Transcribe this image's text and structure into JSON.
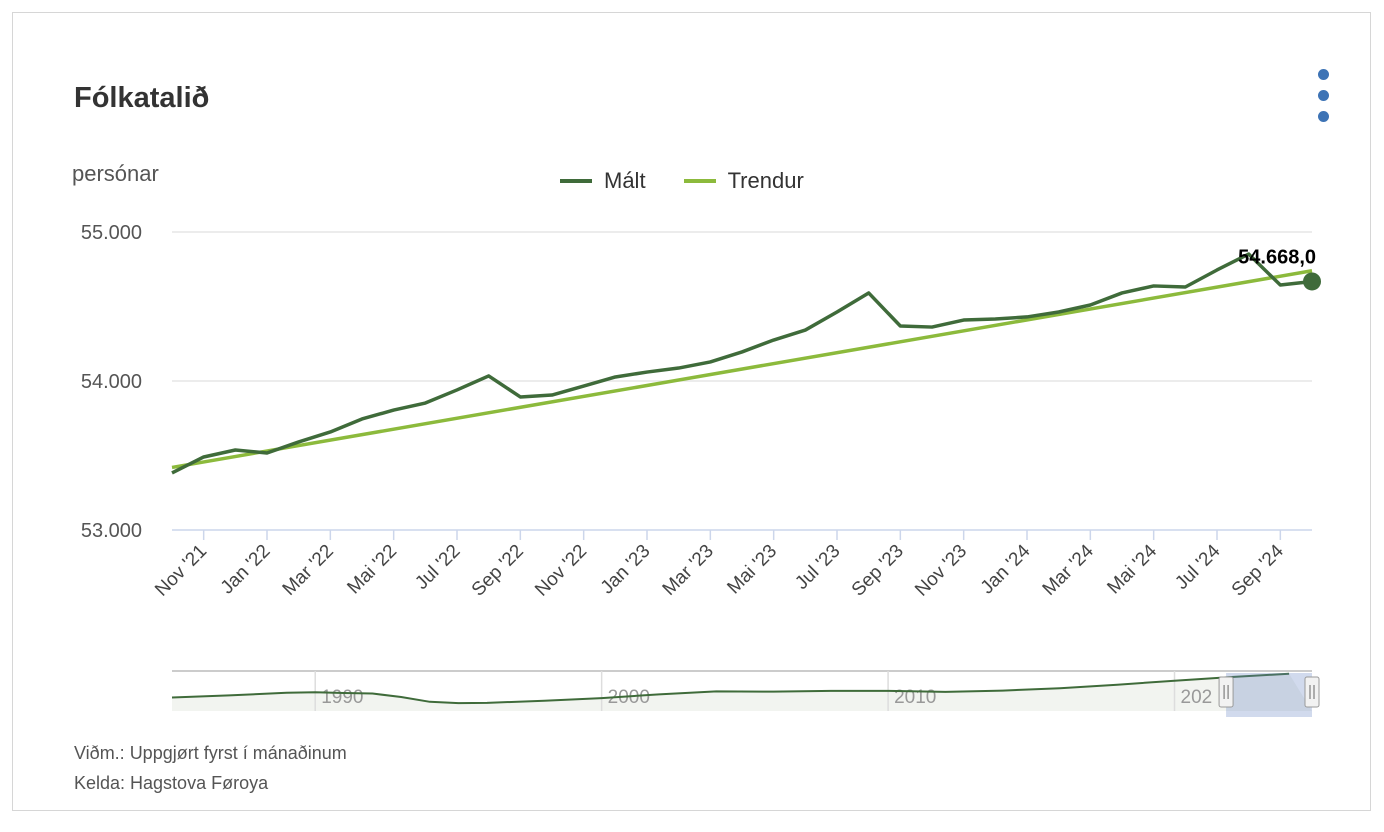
{
  "title": "Fólkatalið",
  "menu_icon": "more-vertical-icon",
  "footer": {
    "note": "Viðm.: Uppgjørt fyrst í mánaðinum",
    "source": "Kelda: Hagstova Føroya"
  },
  "colors": {
    "measured": "#3f6b3a",
    "trend": "#8cba3c",
    "menu": "#3d73b5"
  },
  "chart_data": {
    "type": "line",
    "title": "Fólkatalið",
    "ylabel": "persónar",
    "xlabel": "",
    "ylim": [
      53000,
      55000
    ],
    "yticks": [
      "53.000",
      "54.000",
      "55.000"
    ],
    "ytick_values": [
      53000,
      54000,
      55000
    ],
    "grid": true,
    "legend": "top-center",
    "x": [
      "Oct '21",
      "Nov '21",
      "Dec '21",
      "Jan '22",
      "Feb '22",
      "Mar '22",
      "Apr '22",
      "Mai '22",
      "Jun '22",
      "Jul '22",
      "Aug '22",
      "Sep '22",
      "Oct '22",
      "Nov '22",
      "Dec '22",
      "Jan '23",
      "Feb '23",
      "Mar '23",
      "Apr '23",
      "Mai '23",
      "Jun '23",
      "Jul '23",
      "Aug '23",
      "Sep '23",
      "Oct '23",
      "Nov '23",
      "Dec '23",
      "Jan '24",
      "Feb '24",
      "Mar '24",
      "Apr '24",
      "Mai '24",
      "Jun '24",
      "Jul '24",
      "Aug '24",
      "Sep '24",
      "Oct '24"
    ],
    "xticks": [
      "Nov '21",
      "Jan '22",
      "Mar '22",
      "Mai '22",
      "Jul '22",
      "Sep '22",
      "Nov '22",
      "Jan '23",
      "Mar '23",
      "Mai '23",
      "Jul '23",
      "Sep '23",
      "Nov '23",
      "Jan '24",
      "Mar '24",
      "Mai '24",
      "Jul '24",
      "Sep '24"
    ],
    "series": [
      {
        "name": "Mált",
        "values": [
          53383,
          53490,
          53537,
          53517,
          53591,
          53658,
          53745,
          53805,
          53852,
          53940,
          54034,
          53893,
          53906,
          53966,
          54027,
          54060,
          54087,
          54128,
          54195,
          54275,
          54342,
          54463,
          54591,
          54369,
          54362,
          54409,
          54416,
          54430,
          54463,
          54510,
          54591,
          54638,
          54631,
          54745,
          54852,
          54644,
          54668
        ]
      },
      {
        "name": "Trendur",
        "values_linear": [
          53420,
          54740
        ]
      }
    ],
    "annotation": "54.668,0",
    "navigator": {
      "xticks": [
        "1990",
        "2000",
        "2010",
        "202"
      ],
      "years": [
        1985,
        1987,
        1989,
        1990,
        1991,
        1992,
        1993,
        1994,
        1995,
        1996,
        1998,
        2000,
        2002,
        2004,
        2006,
        2008,
        2010,
        2012,
        2014,
        2016,
        2018,
        2020,
        2022,
        2024
      ],
      "values": [
        45800,
        46600,
        47600,
        47800,
        47500,
        47300,
        46000,
        44200,
        43700,
        43800,
        44600,
        45600,
        47000,
        48100,
        48000,
        48300,
        48300,
        47900,
        48400,
        49300,
        50600,
        52100,
        53500,
        54700
      ],
      "selected_range": [
        "Oct '21",
        "Oct '24"
      ]
    }
  }
}
